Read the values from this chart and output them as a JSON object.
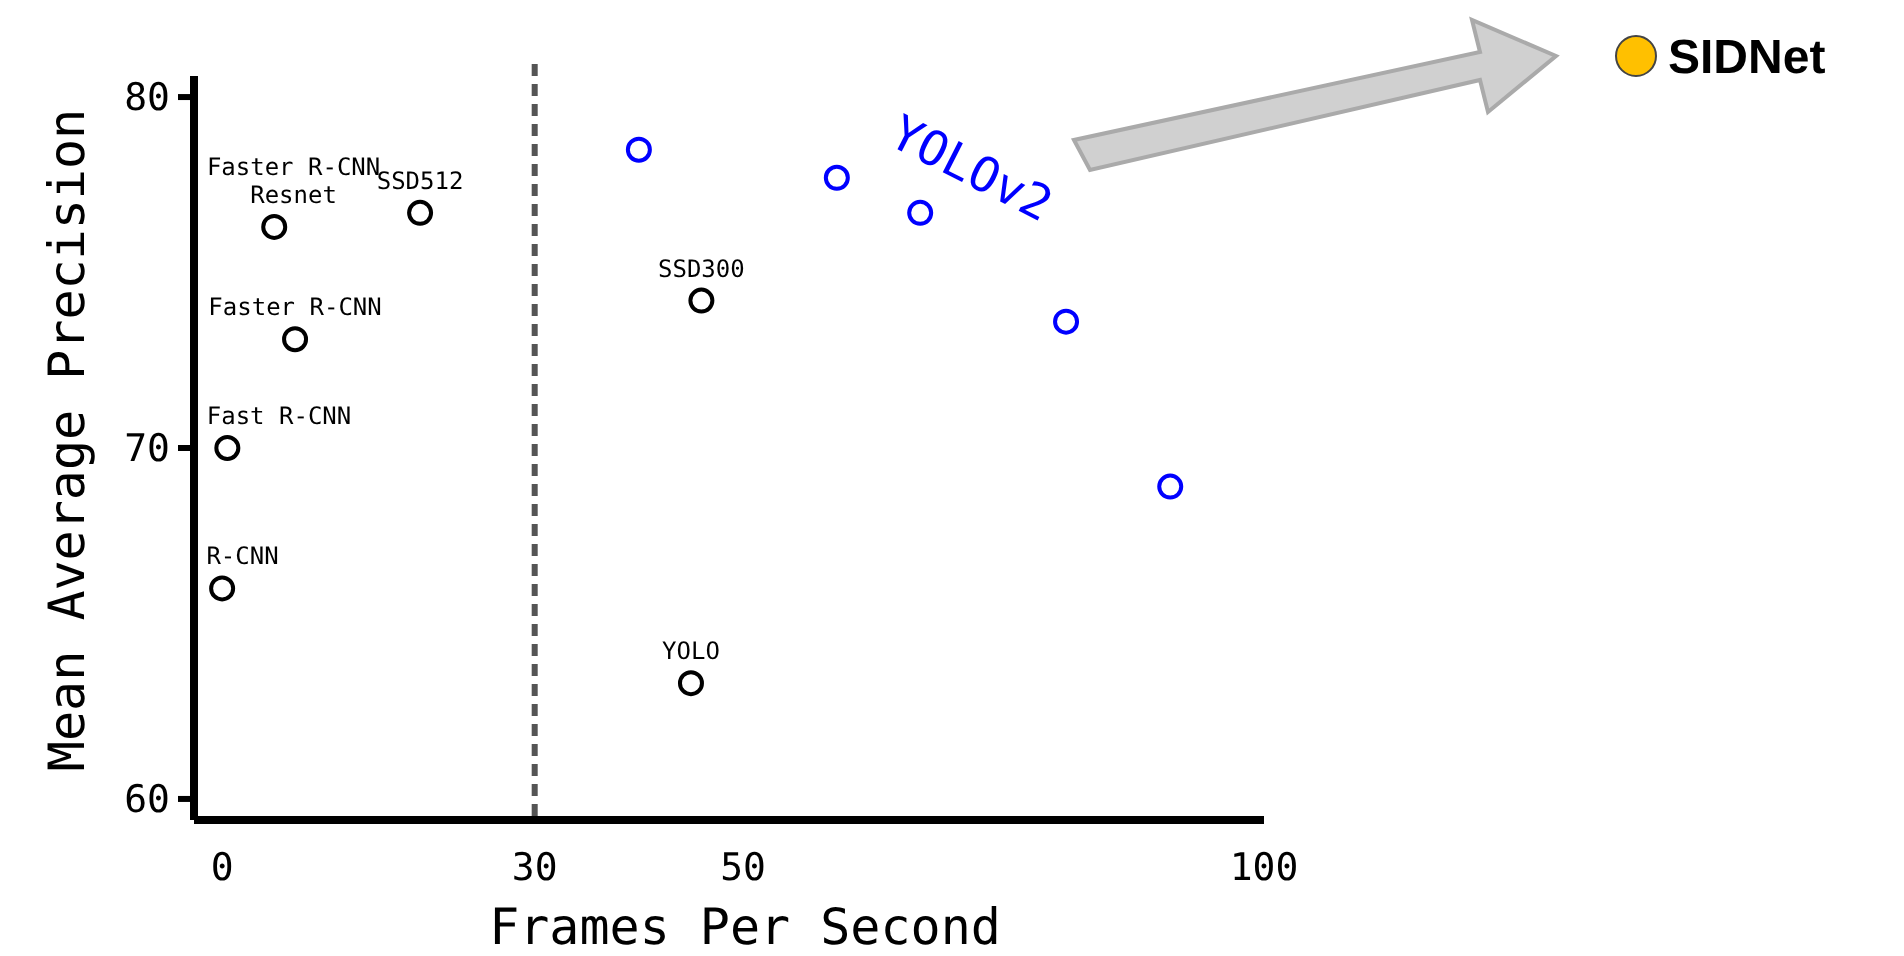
{
  "chart_data": {
    "type": "scatter",
    "xlabel": "Frames Per Second",
    "ylabel": "Mean Average Precision",
    "xlim": [
      -2.7,
      100
    ],
    "ylim": [
      59.4,
      80.6
    ],
    "xticks": [
      0,
      30,
      50,
      100
    ],
    "yticks": [
      60,
      70,
      80
    ],
    "grid": false,
    "marker": "circle",
    "legend": "top right",
    "series": [
      {
        "color": "#000000",
        "x": [
          0,
          0.5,
          7,
          5,
          19,
          46,
          45
        ],
        "values": [
          66,
          70,
          73.1,
          76.3,
          76.7,
          74.2,
          63.3
        ]
      },
      {
        "name": "YOLOv2",
        "color": "#0000ff",
        "x": [
          40,
          59,
          67,
          81,
          91
        ],
        "values": [
          78.5,
          77.7,
          76.7,
          73.6,
          68.9
        ]
      },
      {
        "name": "SIDNet",
        "color": "#ffc000"
      }
    ],
    "ref_lines": [
      {
        "axis": "x",
        "value": 30,
        "color": "#555555",
        "line_style": "dashed"
      }
    ],
    "annotations": [
      {
        "text": "R-CNN",
        "x": 0,
        "y": 66
      },
      {
        "text": "Fast R-CNN",
        "x": 0.5,
        "y": 70
      },
      {
        "text": "Faster R-CNN",
        "x": 7,
        "y": 73.1
      },
      {
        "text": "Faster R-CNN\nResnet",
        "x": 5,
        "y": 76.3
      },
      {
        "text": "SSD512",
        "x": 19,
        "y": 76.7
      },
      {
        "text": "SSD300",
        "x": 46,
        "y": 74.2
      },
      {
        "text": "YOLO",
        "x": 45,
        "y": 63.3
      }
    ]
  }
}
